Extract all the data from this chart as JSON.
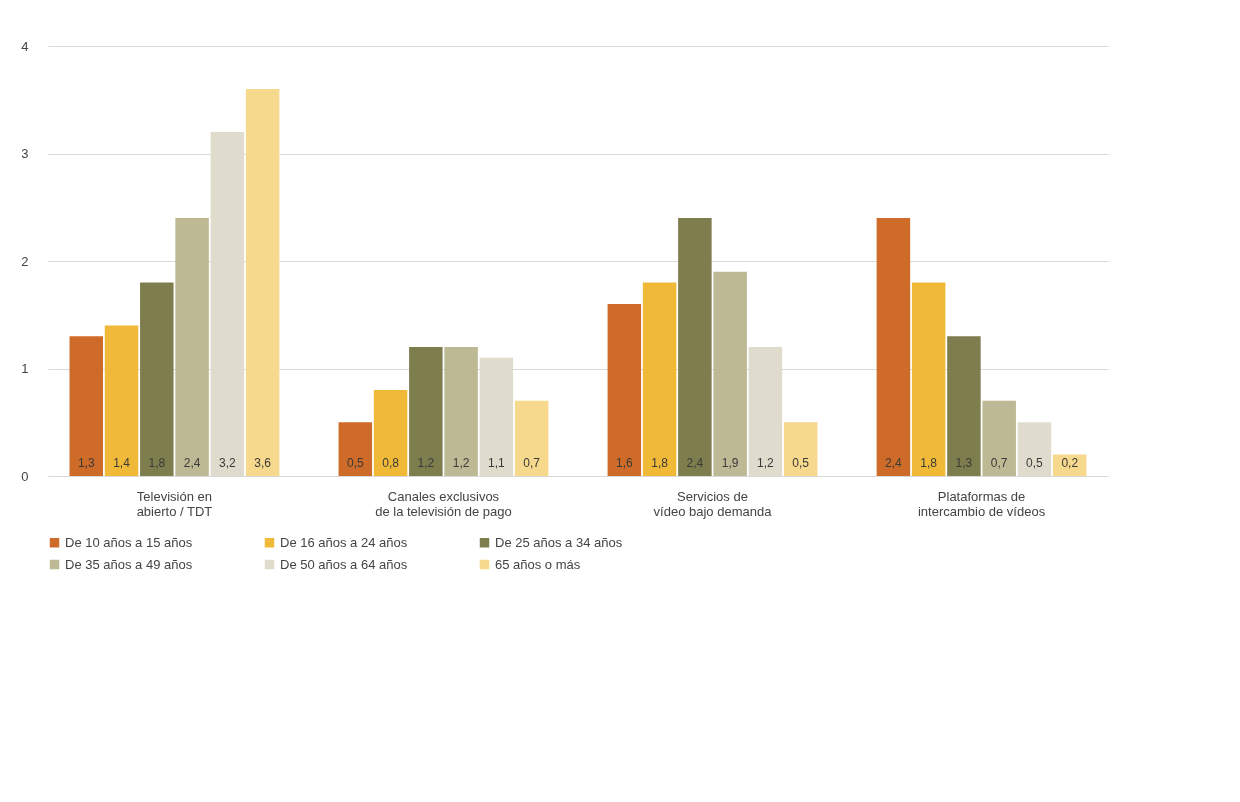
{
  "chart_data": {
    "type": "bar",
    "categories": [
      "Televisión en\nabierto / TDT",
      "Canales exclusivos\nde la televisión de pago",
      "Servicios de\nvídeo bajo demanda",
      "Plataformas de\nintercambio de vídeos"
    ],
    "series": [
      {
        "name": "De 10 años a 15 años",
        "color": "#cf6b28",
        "values": [
          1.3,
          0.5,
          1.6,
          2.4
        ],
        "value_labels": [
          "1,3",
          "0,5",
          "1,6",
          "2,4"
        ]
      },
      {
        "name": "De 16 años a 24 años",
        "color": "#f0ba38",
        "values": [
          1.4,
          0.8,
          1.8,
          1.8
        ],
        "value_labels": [
          "1,4",
          "0,8",
          "1,8",
          "1,8"
        ]
      },
      {
        "name": "De 25 años a 34 años",
        "color": "#7e7d4e",
        "values": [
          1.8,
          1.2,
          2.4,
          1.3
        ],
        "value_labels": [
          "1,8",
          "1,2",
          "2,4",
          "1,3"
        ]
      },
      {
        "name": "De 35 años a 49 años",
        "color": "#bdb995",
        "values": [
          2.4,
          1.2,
          1.9,
          0.7
        ],
        "value_labels": [
          "2,4",
          "1,2",
          "1,9",
          "0,7"
        ]
      },
      {
        "name": "De 50 años a 64 años",
        "color": "#dfdccd",
        "values": [
          3.2,
          1.1,
          1.2,
          0.5
        ],
        "value_labels": [
          "3,2",
          "1,1",
          "1,2",
          "0,5"
        ]
      },
      {
        "name": "65 años o más",
        "color": "#f6d98c",
        "values": [
          3.6,
          0.7,
          0.5,
          0.2
        ],
        "value_labels": [
          "3,6",
          "0,7",
          "0,5",
          "0,2"
        ]
      }
    ],
    "ylim": [
      0,
      4
    ],
    "yticks": [
      0,
      1,
      2,
      3,
      4
    ],
    "grid": "y",
    "legend": "bottom"
  }
}
